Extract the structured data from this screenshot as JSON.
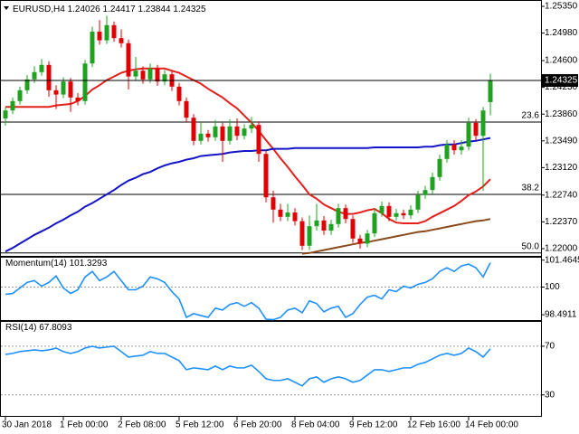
{
  "chart_data": [
    {
      "type": "candlestick",
      "title": "EURUSD,H4",
      "categories": [
        "30 Jan 2018",
        null,
        null,
        null,
        null,
        null,
        null,
        null,
        "1 Feb 00:00",
        null,
        null,
        null,
        null,
        null,
        null,
        null,
        "2 Feb 08:00",
        null,
        null,
        null,
        null,
        null,
        null,
        null,
        "5 Feb 12:00",
        null,
        null,
        null,
        null,
        null,
        null,
        null,
        "6 Feb 20:00",
        null,
        null,
        null,
        null,
        null,
        null,
        null,
        "8 Feb 04:00",
        null,
        null,
        null,
        null,
        null,
        null,
        null,
        "9 Feb 12:00",
        null,
        null,
        null,
        null,
        null,
        null,
        null,
        "12 Feb 16:00",
        null,
        null,
        null,
        null,
        null,
        null,
        null,
        "14 Feb 00:00",
        null,
        null,
        null
      ],
      "open": [
        1.238,
        1.2391,
        1.2404,
        1.2419,
        1.2434,
        1.2444,
        1.2454,
        1.2419,
        1.2413,
        1.2431,
        1.2409,
        1.2404,
        1.2456,
        1.25,
        1.2488,
        1.2509,
        1.2491,
        1.2484,
        1.2438,
        1.2446,
        1.2434,
        1.2449,
        1.2431,
        1.2441,
        1.2424,
        1.2404,
        1.2381,
        1.2349,
        1.2359,
        1.2354,
        1.2369,
        1.2349,
        1.2369,
        1.2356,
        1.2366,
        1.2371,
        1.2331,
        1.2271,
        1.2254,
        1.2244,
        1.225,
        1.2238,
        1.2204,
        1.2231,
        1.2239,
        1.2225,
        1.2234,
        1.2256,
        1.2241,
        1.2214,
        1.2207,
        1.2221,
        1.2249,
        1.2259,
        1.2244,
        1.2249,
        1.2246,
        1.2254,
        1.2274,
        1.2281,
        1.2299,
        1.2324,
        1.2344,
        1.2336,
        1.2341,
        1.2374,
        1.2356,
        1.24026
      ],
      "high": [
        1.2396,
        1.2409,
        1.2424,
        1.244,
        1.2452,
        1.2462,
        1.2459,
        1.2426,
        1.2437,
        1.2436,
        1.2415,
        1.2461,
        1.2507,
        1.2516,
        1.2522,
        1.2514,
        1.2503,
        1.2489,
        1.2465,
        1.2452,
        1.2456,
        1.2454,
        1.2447,
        1.2446,
        1.2429,
        1.2409,
        1.2386,
        1.2375,
        1.2364,
        1.2378,
        1.2374,
        1.2379,
        1.238,
        1.2372,
        1.2382,
        1.2376,
        1.2336,
        1.228,
        1.2262,
        1.2262,
        1.2256,
        1.2243,
        1.2246,
        1.2262,
        1.2245,
        1.224,
        1.2262,
        1.2261,
        1.2246,
        1.2219,
        1.2226,
        1.2255,
        1.2265,
        1.2264,
        1.2255,
        1.2254,
        1.226,
        1.228,
        1.2287,
        1.2305,
        1.233,
        1.235,
        1.235,
        1.235,
        1.2381,
        1.2379,
        1.2396,
        1.24417
      ],
      "low": [
        1.237,
        1.2386,
        1.2399,
        1.2414,
        1.2429,
        1.2439,
        1.241,
        1.2393,
        1.2408,
        1.2389,
        1.2398,
        1.2399,
        1.2451,
        1.2482,
        1.2483,
        1.2486,
        1.2478,
        1.242,
        1.2432,
        1.2428,
        1.2429,
        1.2425,
        1.2426,
        1.2418,
        1.2398,
        1.2375,
        1.2343,
        1.2344,
        1.2348,
        1.2349,
        1.232,
        1.2344,
        1.235,
        1.2351,
        1.236,
        1.232,
        1.2264,
        1.2236,
        1.2238,
        1.2238,
        1.2232,
        1.2198,
        1.2198,
        1.2225,
        1.2219,
        1.2219,
        1.2229,
        1.2235,
        1.2208,
        1.22,
        1.2202,
        1.2216,
        1.2244,
        1.2238,
        1.2239,
        1.2241,
        1.2241,
        1.2249,
        1.2269,
        1.2276,
        1.2294,
        1.2319,
        1.233,
        1.233,
        1.2336,
        1.235,
        1.228,
        1.23844
      ],
      "close": [
        1.2391,
        1.2404,
        1.2419,
        1.2434,
        1.2444,
        1.2454,
        1.2419,
        1.2413,
        1.2431,
        1.2409,
        1.2404,
        1.2456,
        1.25,
        1.2488,
        1.2509,
        1.2491,
        1.2484,
        1.2438,
        1.2446,
        1.2434,
        1.2449,
        1.2431,
        1.2441,
        1.2424,
        1.2404,
        1.2381,
        1.2349,
        1.2359,
        1.2354,
        1.2369,
        1.2349,
        1.2369,
        1.2356,
        1.2366,
        1.2371,
        1.2331,
        1.2271,
        1.2254,
        1.2244,
        1.225,
        1.2238,
        1.2204,
        1.2231,
        1.2239,
        1.2225,
        1.2234,
        1.2256,
        1.2241,
        1.2214,
        1.2207,
        1.2221,
        1.2249,
        1.2259,
        1.2244,
        1.2249,
        1.2246,
        1.2254,
        1.2274,
        1.2281,
        1.2299,
        1.2324,
        1.2344,
        1.2336,
        1.2341,
        1.2374,
        1.2356,
        1.2391,
        1.24325
      ],
      "up_color": "#1fa31f",
      "down_color": "#e00000",
      "series": [
        {
          "color": "#e3201b",
          "values": [
            1.2396,
            1.2396,
            1.2396,
            1.2396,
            1.2396,
            1.2396,
            1.2396,
            1.2398,
            1.2399,
            1.24,
            1.2404,
            1.2411,
            1.242,
            1.2426,
            1.2433,
            1.2438,
            1.2443,
            1.2446,
            1.2448,
            1.2449,
            1.2449,
            1.2449,
            1.2449,
            1.2446,
            1.2443,
            1.2438,
            1.2433,
            1.2428,
            1.2421,
            1.2415,
            1.2409,
            1.2401,
            1.2394,
            1.2384,
            1.2374,
            1.2363,
            1.235,
            1.2338,
            1.2325,
            1.2313,
            1.23,
            1.2288,
            1.2275,
            1.2269,
            1.2261,
            1.2256,
            1.2251,
            1.2248,
            1.2248,
            1.225,
            1.2253,
            1.2255,
            1.2249,
            1.2241,
            1.2236,
            1.2235,
            1.2235,
            1.2235,
            1.2238,
            1.2244,
            1.2249,
            1.2254,
            1.2259,
            1.2266,
            1.2274,
            1.2279,
            1.2286,
            1.2296
          ]
        },
        {
          "color": "#1414c8",
          "values": [
            1.2196,
            1.2201,
            1.2207,
            1.2213,
            1.2219,
            1.2224,
            1.2229,
            1.2235,
            1.224,
            1.2246,
            1.2251,
            1.2258,
            1.2263,
            1.2269,
            1.2275,
            1.2281,
            1.2288,
            1.2294,
            1.2298,
            1.2303,
            1.2306,
            1.2311,
            1.2315,
            1.2318,
            1.232,
            1.2323,
            1.2325,
            1.2328,
            1.2329,
            1.233,
            1.2331,
            1.2333,
            1.2334,
            1.2335,
            1.2335,
            1.2336,
            1.2336,
            1.2338,
            1.2338,
            1.2338,
            1.2339,
            1.2339,
            1.2339,
            1.2339,
            1.2339,
            1.2339,
            1.2339,
            1.2339,
            1.2339,
            1.2339,
            1.2339,
            1.234,
            1.234,
            1.234,
            1.234,
            1.234,
            1.234,
            1.234,
            1.2341,
            1.2341,
            1.2343,
            1.2344,
            1.2344,
            1.2346,
            1.2348,
            1.2349,
            1.2351,
            1.2353
          ]
        },
        {
          "color": "#8b4a1c",
          "values": [
            null,
            null,
            null,
            null,
            null,
            null,
            null,
            null,
            null,
            null,
            null,
            null,
            null,
            null,
            null,
            null,
            null,
            null,
            null,
            null,
            null,
            null,
            null,
            null,
            null,
            null,
            null,
            null,
            null,
            null,
            null,
            null,
            null,
            null,
            null,
            null,
            null,
            null,
            null,
            null,
            null,
            1.2193,
            1.2194,
            1.2196,
            1.2198,
            1.22,
            1.2202,
            1.2204,
            1.2206,
            1.2208,
            1.2209,
            1.2211,
            1.2213,
            1.2215,
            1.2217,
            1.2219,
            1.2221,
            1.2223,
            1.2224,
            1.2226,
            1.2228,
            1.223,
            1.2232,
            1.2234,
            1.2236,
            1.2238,
            1.2239,
            1.2241
          ]
        }
      ],
      "levels": [
        {
          "value": 1.2375,
          "label": "23.6"
        },
        {
          "value": 1.2275,
          "label": "38.2"
        },
        {
          "value": 1.2194,
          "label": "50.0"
        }
      ],
      "ylim": [
        1.219,
        1.254
      ],
      "yticks": [
        {
          "value": 1.2535,
          "label": "1.25350"
        },
        {
          "value": 1.2498,
          "label": "1.24980"
        },
        {
          "value": 1.246,
          "label": "1.24600"
        },
        {
          "value": 1.2423,
          "label": "1.24230"
        },
        {
          "value": 1.2386,
          "label": "1.23860"
        },
        {
          "value": 1.2349,
          "label": "1.23490"
        },
        {
          "value": 1.2312,
          "label": "1.23120"
        },
        {
          "value": 1.2274,
          "label": "1.22740"
        },
        {
          "value": 1.2237,
          "label": "1.22370"
        },
        {
          "value": 1.22,
          "label": "1.22000"
        }
      ]
    },
    {
      "type": "line",
      "title": "Momentum(14)",
      "color": "#1e90ff",
      "values": [
        99.6,
        99.65,
        99.95,
        100.25,
        100.35,
        100.05,
        100.25,
        100.6,
        99.95,
        99.65,
        99.85,
        100.55,
        100.85,
        100.35,
        100.55,
        100.85,
        100.35,
        99.85,
        99.85,
        100.05,
        100.55,
        100.45,
        100.25,
        99.75,
        99.35,
        98.35,
        98.55,
        98.45,
        98.35,
        98.85,
        98.75,
        99.05,
        99.15,
        98.95,
        99.15,
        98.85,
        98.25,
        98.22,
        98.35,
        98.75,
        98.85,
        98.6,
        99.25,
        99.1,
        98.65,
        98.85,
        98.95,
        98.35,
        98.55,
        99.05,
        99.45,
        99.55,
        99.35,
        99.85,
        99.75,
        100.05,
        99.95,
        100.15,
        100.25,
        100.45,
        100.85,
        101.05,
        100.85,
        101.15,
        101.25,
        101.05,
        100.55,
        101.3293
      ],
      "levels": [
        100
      ],
      "ylim": [
        98.2,
        101.6
      ],
      "yticks": [
        101.4645,
        100,
        98.4911
      ]
    },
    {
      "type": "line",
      "title": "RSI(14)",
      "color": "#1e90ff",
      "values": [
        63.3,
        64.1,
        65.6,
        66.3,
        67.0,
        66.3,
        67.0,
        68.5,
        65.6,
        64.1,
        65.6,
        68.5,
        70.0,
        68.5,
        69.3,
        70.0,
        65.6,
        61.1,
        61.9,
        62.6,
        65.6,
        64.1,
        64.1,
        61.1,
        58.1,
        50.7,
        52.2,
        51.5,
        50.7,
        53.7,
        50.7,
        53.7,
        52.2,
        52.2,
        54.4,
        49.3,
        43.3,
        41.9,
        41.9,
        43.3,
        40.4,
        37.4,
        43.3,
        44.8,
        40.4,
        43.3,
        44.8,
        43.3,
        40.4,
        41.9,
        46.3,
        50.7,
        50.7,
        49.3,
        50.7,
        52.2,
        52.2,
        55.2,
        56.7,
        59.6,
        62.6,
        64.1,
        62.6,
        64.1,
        68.5,
        65.6,
        61.1,
        67.8093
      ],
      "levels": [
        70,
        30
      ],
      "ylim": [
        12,
        90
      ],
      "yticks": [
        70,
        30
      ]
    }
  ]
}
